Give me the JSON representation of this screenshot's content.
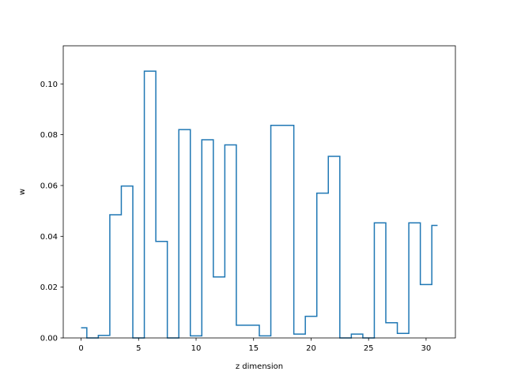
{
  "chart_data": {
    "type": "line",
    "drawstyle": "steps-mid",
    "title": "",
    "xlabel": "z dimension",
    "ylabel": "w",
    "xlim": [
      -1.55,
      32.55
    ],
    "ylim": [
      0,
      0.115
    ],
    "grid": false,
    "color": "#1f77b4",
    "x_ticks": [
      0,
      5,
      10,
      15,
      20,
      25,
      30
    ],
    "y_ticks": [
      0.0,
      0.02,
      0.04,
      0.06,
      0.08,
      0.1
    ],
    "y_tick_labels": [
      "0.00",
      "0.02",
      "0.04",
      "0.06",
      "0.08",
      "0.10"
    ],
    "series": [
      {
        "x": [
          0,
          1,
          2,
          3,
          4,
          5,
          6,
          7,
          8,
          9,
          10,
          11,
          12,
          13,
          14,
          15,
          16,
          17,
          18,
          19,
          20,
          21,
          22,
          23,
          24,
          25,
          26,
          27,
          28,
          29,
          30,
          31
        ],
        "values": [
          0.004,
          0.0,
          0.001,
          0.0485,
          0.0598,
          0.0,
          0.105,
          0.038,
          0.0,
          0.082,
          0.0008,
          0.078,
          0.024,
          0.076,
          0.005,
          0.005,
          0.0008,
          0.0837,
          0.0837,
          0.0015,
          0.0085,
          0.057,
          0.0715,
          0.0,
          0.0015,
          0.0,
          0.0453,
          0.006,
          0.0018,
          0.0453,
          0.021,
          0.0443
        ]
      }
    ]
  }
}
